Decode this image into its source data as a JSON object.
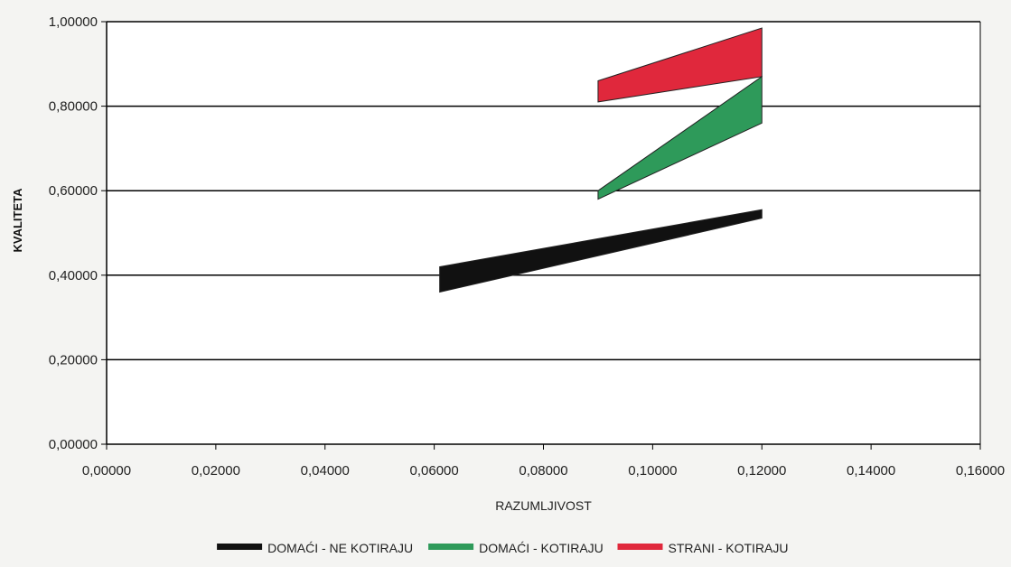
{
  "chart_data": {
    "type": "area",
    "xlabel": "RAZUMLJIVOST",
    "ylabel": "KVALITETA",
    "xlim": [
      0.0,
      0.16
    ],
    "ylim": [
      0.0,
      1.0
    ],
    "xticks": [
      "0,00000",
      "0,02000",
      "0,04000",
      "0,06000",
      "0,08000",
      "0,10000",
      "0,12000",
      "0,14000",
      "0,16000"
    ],
    "yticks": [
      "0,00000",
      "0,20000",
      "0,40000",
      "0,60000",
      "0,80000",
      "1,00000"
    ],
    "grid": "horizontal",
    "legend_position": "bottom",
    "series": [
      {
        "name": "DOMAĆI - NE KOTIRAJU",
        "color": "#111111",
        "x": [
          0.061,
          0.12
        ],
        "upper": [
          0.42,
          0.555
        ],
        "lower": [
          0.36,
          0.535
        ]
      },
      {
        "name": "DOMAĆI - KOTIRAJU",
        "color": "#2e9a5a",
        "x": [
          0.09,
          0.12
        ],
        "upper": [
          0.6,
          0.87
        ],
        "lower": [
          0.58,
          0.76
        ]
      },
      {
        "name": "STRANI - KOTIRAJU",
        "color": "#e0283c",
        "x": [
          0.09,
          0.12
        ],
        "upper": [
          0.86,
          0.985
        ],
        "lower": [
          0.81,
          0.87
        ]
      }
    ]
  }
}
